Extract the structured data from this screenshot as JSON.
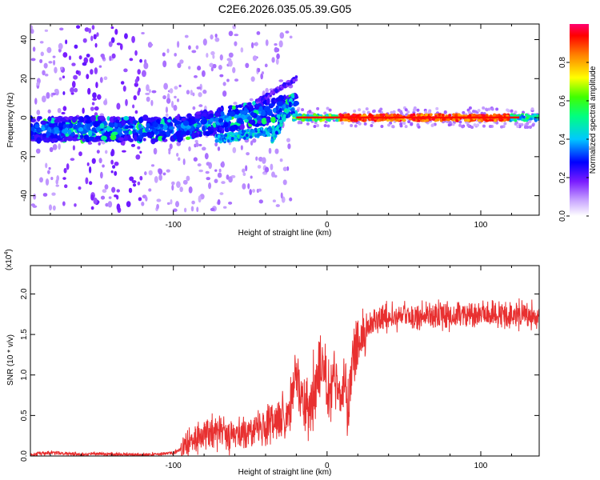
{
  "title": "C2E6.2026.035.05.39.G05",
  "chart_data": [
    {
      "type": "heatmap",
      "title": "C2E6.2026.035.05.39.G05",
      "xlabel": "Height of straight line (km)",
      "ylabel": "Frequency (Hz)",
      "xlim": [
        -193,
        138
      ],
      "ylim": [
        -50,
        48
      ],
      "xticks": [
        -100,
        0,
        100
      ],
      "yticks": [
        -40,
        -20,
        0,
        20,
        40
      ],
      "x_tick_labels": [
        "-100",
        "0",
        "100"
      ],
      "y_tick_labels": [
        "-40",
        "-20",
        "0",
        "20",
        "40"
      ],
      "colorbar": {
        "label": "Normalized spectral amplitude",
        "range": [
          0,
          1
        ],
        "ticks": [
          "0.0",
          "0.2",
          "0.4",
          "0.6",
          "0.8"
        ],
        "tick_values": [
          0.0,
          0.2,
          0.4,
          0.6,
          0.8
        ],
        "colors": [
          "#ffffff",
          "#b070ff",
          "#6600ff",
          "#0000ff",
          "#00ffff",
          "#00ff00",
          "#ffff00",
          "#ff8000",
          "#ff0000",
          "#ff0080"
        ]
      },
      "features": [
        {
          "name": "main-band",
          "x": [
            -193,
            -20
          ],
          "freq_center": -6,
          "amplitude": 0.3
        },
        {
          "name": "rising-track",
          "x": [
            -100,
            -20
          ],
          "freq": [
            -5,
            10
          ],
          "amplitude": 0.4
        },
        {
          "name": "secondary-track",
          "x": [
            -70,
            -30
          ],
          "freq": [
            -12,
            0
          ],
          "amplitude": 0.35
        },
        {
          "name": "upper-track",
          "x": [
            -45,
            -20
          ],
          "freq": [
            10,
            20
          ],
          "amplitude": 0.2
        },
        {
          "name": "carrier-line",
          "x": [
            -20,
            138
          ],
          "freq_center": 0,
          "amplitude": 0.9
        }
      ]
    },
    {
      "type": "line",
      "xlabel": "Height of straight line (km)",
      "ylabel": "SNR (10 * v/v)",
      "multiplier": "(x10",
      "multiplier_exp": "4",
      "multiplier_close": ")",
      "xlim": [
        -193,
        138
      ],
      "ylim": [
        0,
        2.35
      ],
      "xticks": [
        -100,
        0,
        100
      ],
      "yticks": [
        0.0,
        0.5,
        1.0,
        1.5,
        2.0
      ],
      "x_tick_labels": [
        "-100",
        "0",
        "100"
      ],
      "y_tick_labels": [
        "0.0",
        "0.5",
        "1.0",
        "1.5",
        "2.0"
      ],
      "color": "#e83030",
      "series": [
        {
          "name": "SNR",
          "x": [
            -193,
            -180,
            -170,
            -160,
            -150,
            -140,
            -130,
            -120,
            -110,
            -100,
            -95,
            -90,
            -85,
            -80,
            -75,
            -70,
            -65,
            -60,
            -55,
            -50,
            -45,
            -40,
            -35,
            -30,
            -27,
            -25,
            -23,
            -21,
            -20,
            -18,
            -16,
            -14,
            -12,
            -10,
            -8,
            -6,
            -4,
            -2,
            0,
            2,
            4,
            6,
            8,
            10,
            12,
            13,
            14,
            16,
            18,
            20,
            22,
            25,
            28,
            30,
            35,
            40,
            45,
            50,
            55,
            60,
            65,
            70,
            75,
            80,
            85,
            90,
            95,
            100,
            105,
            110,
            115,
            120,
            125,
            130,
            135,
            138
          ],
          "y": [
            0.02,
            0.04,
            0.03,
            0.02,
            0.03,
            0.02,
            0.02,
            0.01,
            0.02,
            0.04,
            0.08,
            0.15,
            0.22,
            0.28,
            0.3,
            0.3,
            0.28,
            0.26,
            0.28,
            0.3,
            0.32,
            0.35,
            0.4,
            0.45,
            0.5,
            0.55,
            0.7,
            0.9,
            1.0,
            0.85,
            0.75,
            0.65,
            0.45,
            0.55,
            0.75,
            0.95,
            1.05,
            1.1,
            0.85,
            0.8,
            1.0,
            0.85,
            0.75,
            0.7,
            0.95,
            0.55,
            0.6,
            1.0,
            1.25,
            1.4,
            1.5,
            1.58,
            1.65,
            1.68,
            1.7,
            1.72,
            1.73,
            1.72,
            1.74,
            1.73,
            1.72,
            1.74,
            1.73,
            1.72,
            1.75,
            1.74,
            1.73,
            1.76,
            1.74,
            1.73,
            1.75,
            1.72,
            1.74,
            1.73,
            1.75,
            1.74
          ]
        }
      ]
    }
  ]
}
